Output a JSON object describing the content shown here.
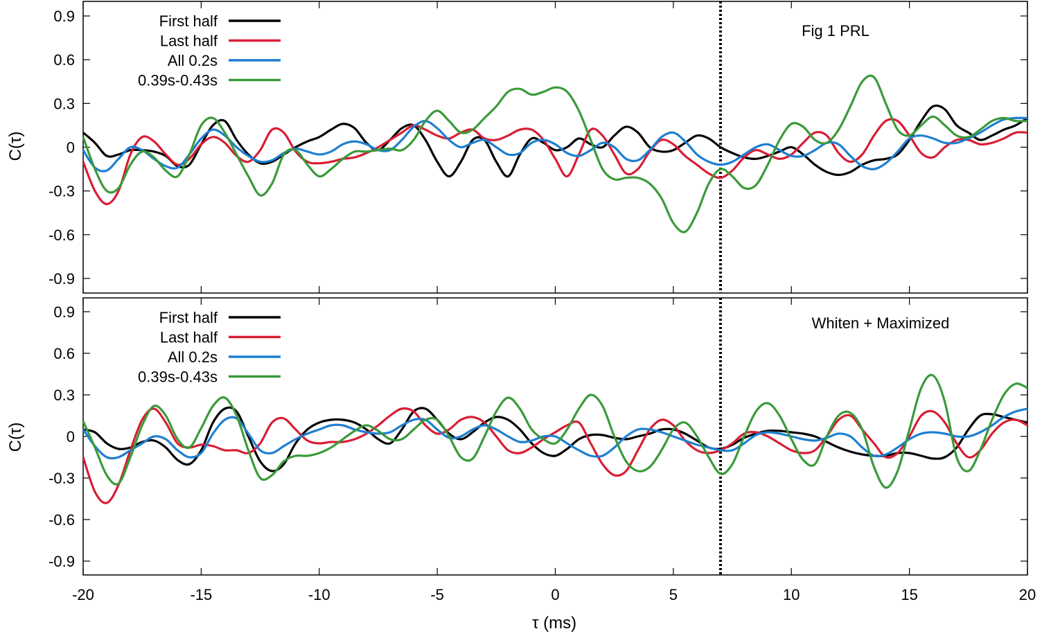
{
  "chart_data": [
    {
      "type": "line",
      "annotation": "Fig 1 PRL",
      "xlabel": "",
      "ylabel": "C(τ)",
      "xlim": [
        -20,
        20
      ],
      "ylim": [
        -1.0,
        1.0
      ],
      "xticks": [
        -20,
        -15,
        -10,
        -5,
        0,
        5,
        10,
        15,
        20
      ],
      "xtick_labels": [],
      "yticks": [
        -0.9,
        -0.6,
        -0.3,
        0,
        0.3,
        0.6,
        0.9
      ],
      "ytick_labels": [
        "-0.9",
        "-0.6",
        "-0.3",
        "0",
        "0.3",
        "0.6",
        "0.9"
      ],
      "vline_x": 7,
      "legend_position": "top-left",
      "x": [
        -20,
        -19.5,
        -19,
        -18.5,
        -18,
        -17.5,
        -17,
        -16.5,
        -16,
        -15.5,
        -15,
        -14.5,
        -14,
        -13.5,
        -13,
        -12.5,
        -12,
        -11.5,
        -11,
        -10.5,
        -10,
        -9.5,
        -9,
        -8.5,
        -8,
        -7.5,
        -7,
        -6.5,
        -6,
        -5.5,
        -5,
        -4.5,
        -4,
        -3.5,
        -3,
        -2.5,
        -2,
        -1.5,
        -1,
        -0.5,
        0,
        0.5,
        1,
        1.5,
        2,
        2.5,
        3,
        3.5,
        4,
        4.5,
        5,
        5.5,
        6,
        6.5,
        7,
        7.5,
        8,
        8.5,
        9,
        9.5,
        10,
        10.5,
        11,
        11.5,
        12,
        12.5,
        13,
        13.5,
        14,
        14.5,
        15,
        15.5,
        16,
        16.5,
        17,
        17.5,
        18,
        18.5,
        19,
        19.5,
        20
      ],
      "series": [
        {
          "name": "First half",
          "color": "#000000",
          "values": [
            0.1,
            0.03,
            -0.06,
            -0.05,
            -0.02,
            -0.02,
            -0.03,
            -0.06,
            -0.13,
            -0.12,
            0.02,
            0.15,
            0.18,
            0.05,
            -0.05,
            -0.11,
            -0.1,
            -0.05,
            0.0,
            0.04,
            0.07,
            0.12,
            0.16,
            0.13,
            0.03,
            -0.02,
            0.05,
            0.13,
            0.15,
            0.05,
            -0.1,
            -0.2,
            -0.1,
            0.05,
            0.05,
            -0.1,
            -0.2,
            -0.05,
            0.06,
            0.03,
            -0.02,
            0.0,
            0.06,
            0.02,
            0.0,
            0.08,
            0.14,
            0.1,
            0.0,
            -0.03,
            -0.02,
            0.03,
            0.08,
            0.06,
            0.0,
            -0.04,
            -0.07,
            -0.08,
            -0.06,
            -0.03,
            0.0,
            -0.05,
            -0.12,
            -0.17,
            -0.19,
            -0.17,
            -0.12,
            -0.09,
            -0.08,
            -0.05,
            0.05,
            0.18,
            0.28,
            0.26,
            0.15,
            0.1,
            0.05,
            0.08,
            0.12,
            0.15,
            0.2
          ]
        },
        {
          "name": "Last half",
          "color": "#d81e35",
          "values": [
            -0.1,
            -0.3,
            -0.39,
            -0.3,
            -0.05,
            0.07,
            0.04,
            -0.05,
            -0.12,
            -0.08,
            0.02,
            0.07,
            0.03,
            -0.06,
            -0.1,
            -0.02,
            0.12,
            0.1,
            -0.03,
            -0.1,
            -0.11,
            -0.1,
            -0.08,
            -0.07,
            -0.04,
            0.0,
            0.05,
            0.1,
            0.15,
            0.12,
            0.08,
            0.06,
            0.1,
            0.12,
            0.06,
            0.05,
            0.08,
            0.12,
            0.12,
            0.05,
            -0.08,
            -0.2,
            -0.05,
            0.12,
            0.08,
            -0.05,
            -0.18,
            -0.15,
            -0.03,
            0.05,
            0.02,
            -0.06,
            -0.12,
            -0.18,
            -0.21,
            -0.16,
            -0.07,
            -0.02,
            -0.05,
            -0.08,
            -0.05,
            0.03,
            0.1,
            0.08,
            -0.04,
            -0.1,
            -0.05,
            0.08,
            0.18,
            0.18,
            0.08,
            -0.04,
            -0.07,
            0.0,
            0.05,
            0.05,
            0.02,
            0.03,
            0.06,
            0.1,
            0.1
          ]
        },
        {
          "name": "All 0.2s",
          "color": "#1e7fd1",
          "values": [
            -0.02,
            -0.14,
            -0.16,
            -0.08,
            0.0,
            -0.02,
            -0.08,
            -0.13,
            -0.14,
            -0.05,
            0.06,
            0.12,
            0.08,
            0.0,
            -0.06,
            -0.1,
            -0.09,
            -0.04,
            -0.01,
            -0.03,
            -0.05,
            -0.03,
            0.02,
            0.04,
            0.02,
            -0.02,
            -0.02,
            0.05,
            0.14,
            0.18,
            0.13,
            0.05,
            0.0,
            0.03,
            0.05,
            0.0,
            -0.05,
            -0.04,
            0.03,
            0.05,
            0.02,
            -0.04,
            -0.06,
            -0.02,
            0.03,
            0.0,
            -0.08,
            -0.09,
            -0.02,
            0.07,
            0.1,
            0.04,
            -0.05,
            -0.1,
            -0.12,
            -0.1,
            -0.05,
            0.0,
            0.02,
            -0.02,
            -0.06,
            -0.06,
            -0.02,
            0.03,
            0.02,
            -0.06,
            -0.13,
            -0.15,
            -0.11,
            -0.03,
            0.06,
            0.08,
            0.06,
            0.03,
            0.03,
            0.06,
            0.1,
            0.15,
            0.19,
            0.2,
            0.2
          ]
        },
        {
          "name": "0.39s-0.43s",
          "color": "#3a9a3a",
          "values": [
            0.07,
            -0.15,
            -0.3,
            -0.28,
            -0.12,
            -0.03,
            -0.07,
            -0.16,
            -0.2,
            -0.05,
            0.15,
            0.2,
            0.1,
            -0.05,
            -0.2,
            -0.33,
            -0.25,
            -0.05,
            -0.02,
            -0.12,
            -0.2,
            -0.15,
            -0.08,
            -0.03,
            -0.03,
            -0.02,
            -0.01,
            -0.02,
            0.05,
            0.18,
            0.25,
            0.18,
            0.1,
            0.12,
            0.2,
            0.28,
            0.38,
            0.4,
            0.36,
            0.38,
            0.41,
            0.38,
            0.25,
            0.05,
            -0.15,
            -0.22,
            -0.21,
            -0.21,
            -0.25,
            -0.35,
            -0.52,
            -0.58,
            -0.45,
            -0.25,
            -0.15,
            -0.2,
            -0.28,
            -0.26,
            -0.12,
            0.05,
            0.16,
            0.14,
            0.05,
            0.03,
            0.12,
            0.28,
            0.45,
            0.48,
            0.3,
            0.12,
            0.08,
            0.15,
            0.21,
            0.15,
            0.08,
            0.07,
            0.12,
            0.18,
            0.2,
            0.18,
            0.18
          ]
        }
      ]
    },
    {
      "type": "line",
      "annotation": "Whiten + Maximized",
      "xlabel": "τ (ms)",
      "ylabel": "C(τ)",
      "xlim": [
        -20,
        20
      ],
      "ylim": [
        -1.0,
        1.0
      ],
      "xticks": [
        -20,
        -15,
        -10,
        -5,
        0,
        5,
        10,
        15,
        20
      ],
      "xtick_labels": [
        "-20",
        "-15",
        "-10",
        "-5",
        "0",
        "5",
        "10",
        "15",
        "20"
      ],
      "yticks": [
        -0.9,
        -0.6,
        -0.3,
        0,
        0.3,
        0.6,
        0.9
      ],
      "ytick_labels": [
        "-0.9",
        "-0.6",
        "-0.3",
        "0",
        "0.3",
        "0.6",
        "0.9"
      ],
      "vline_x": 7,
      "legend_position": "top-left",
      "x": [
        -20,
        -19.5,
        -19,
        -18.5,
        -18,
        -17.5,
        -17,
        -16.5,
        -16,
        -15.5,
        -15,
        -14.5,
        -14,
        -13.5,
        -13,
        -12.5,
        -12,
        -11.5,
        -11,
        -10.5,
        -10,
        -9.5,
        -9,
        -8.5,
        -8,
        -7.5,
        -7,
        -6.5,
        -6,
        -5.5,
        -5,
        -4.5,
        -4,
        -3.5,
        -3,
        -2.5,
        -2,
        -1.5,
        -1,
        -0.5,
        0,
        0.5,
        1,
        1.5,
        2,
        2.5,
        3,
        3.5,
        4,
        4.5,
        5,
        5.5,
        6,
        6.5,
        7,
        7.5,
        8,
        8.5,
        9,
        9.5,
        10,
        10.5,
        11,
        11.5,
        12,
        12.5,
        13,
        13.5,
        14,
        14.5,
        15,
        15.5,
        16,
        16.5,
        17,
        17.5,
        18,
        18.5,
        19,
        19.5,
        20
      ],
      "series": [
        {
          "name": "First half",
          "color": "#000000",
          "values": [
            0.05,
            0.03,
            -0.05,
            -0.09,
            -0.08,
            -0.04,
            -0.03,
            -0.08,
            -0.17,
            -0.2,
            -0.1,
            0.1,
            0.2,
            0.18,
            0.0,
            -0.18,
            -0.25,
            -0.2,
            -0.05,
            0.05,
            0.1,
            0.12,
            0.12,
            0.1,
            0.05,
            -0.02,
            -0.05,
            0.05,
            0.18,
            0.2,
            0.12,
            0.02,
            -0.02,
            0.03,
            0.1,
            0.14,
            0.12,
            0.05,
            -0.05,
            -0.12,
            -0.14,
            -0.09,
            -0.02,
            0.01,
            0.01,
            -0.01,
            -0.02,
            0.0,
            0.02,
            0.05,
            0.05,
            0.02,
            -0.03,
            -0.08,
            -0.09,
            -0.06,
            -0.01,
            0.02,
            0.04,
            0.04,
            0.03,
            0.02,
            0.0,
            -0.04,
            -0.08,
            -0.11,
            -0.13,
            -0.14,
            -0.14,
            -0.12,
            -0.12,
            -0.14,
            -0.16,
            -0.15,
            -0.08,
            0.05,
            0.15,
            0.16,
            0.14,
            0.12,
            0.1
          ]
        },
        {
          "name": "Last half",
          "color": "#d81e35",
          "values": [
            -0.15,
            -0.4,
            -0.48,
            -0.35,
            -0.1,
            0.12,
            0.2,
            0.1,
            -0.05,
            -0.08,
            -0.06,
            -0.07,
            -0.1,
            -0.1,
            -0.12,
            -0.05,
            0.1,
            0.13,
            0.05,
            -0.03,
            -0.05,
            -0.04,
            -0.04,
            -0.02,
            0.02,
            0.08,
            0.15,
            0.2,
            0.18,
            0.08,
            0.02,
            0.05,
            0.12,
            0.14,
            0.1,
            0.0,
            -0.1,
            -0.12,
            -0.08,
            -0.02,
            0.03,
            0.08,
            0.1,
            -0.05,
            -0.2,
            -0.28,
            -0.25,
            -0.1,
            0.05,
            0.12,
            0.08,
            -0.03,
            -0.1,
            -0.12,
            -0.1,
            -0.05,
            0.02,
            0.03,
            0.0,
            -0.05,
            -0.1,
            -0.12,
            -0.1,
            0.0,
            0.12,
            0.15,
            0.05,
            -0.05,
            -0.15,
            -0.12,
            0.0,
            0.15,
            0.18,
            0.1,
            -0.05,
            -0.15,
            -0.1,
            0.02,
            0.1,
            0.12,
            0.08
          ]
        },
        {
          "name": "All 0.2s",
          "color": "#1e7fd1",
          "values": [
            0.05,
            -0.07,
            -0.15,
            -0.15,
            -0.1,
            -0.05,
            0.0,
            -0.02,
            -0.1,
            -0.15,
            -0.12,
            0.02,
            0.12,
            0.13,
            0.02,
            -0.1,
            -0.12,
            -0.07,
            -0.02,
            0.02,
            0.05,
            0.08,
            0.08,
            0.05,
            0.03,
            0.02,
            0.03,
            0.08,
            0.12,
            0.12,
            0.05,
            -0.01,
            0.0,
            0.05,
            0.08,
            0.05,
            0.0,
            -0.04,
            -0.03,
            0.0,
            0.0,
            -0.05,
            -0.1,
            -0.14,
            -0.14,
            -0.08,
            0.0,
            0.05,
            0.05,
            0.03,
            0.0,
            -0.03,
            -0.06,
            -0.08,
            -0.1,
            -0.1,
            -0.05,
            0.01,
            0.03,
            0.02,
            0.0,
            -0.02,
            -0.03,
            -0.01,
            0.02,
            0.0,
            -0.08,
            -0.14,
            -0.13,
            -0.08,
            -0.02,
            0.02,
            0.03,
            0.02,
            0.0,
            0.0,
            0.03,
            0.08,
            0.14,
            0.18,
            0.2
          ]
        },
        {
          "name": "0.39s-0.43s",
          "color": "#3a9a3a",
          "values": [
            0.11,
            -0.08,
            -0.28,
            -0.34,
            -0.15,
            0.08,
            0.22,
            0.15,
            -0.02,
            -0.08,
            0.06,
            0.22,
            0.28,
            0.15,
            -0.1,
            -0.3,
            -0.28,
            -0.18,
            -0.14,
            -0.14,
            -0.12,
            -0.08,
            -0.02,
            0.04,
            0.08,
            0.04,
            -0.02,
            -0.02,
            0.05,
            0.12,
            0.12,
            0.0,
            -0.15,
            -0.16,
            0.0,
            0.18,
            0.28,
            0.2,
            0.05,
            -0.02,
            -0.05,
            0.05,
            0.2,
            0.3,
            0.22,
            0.0,
            -0.18,
            -0.25,
            -0.22,
            -0.1,
            0.05,
            0.1,
            0.0,
            -0.15,
            -0.27,
            -0.2,
            0.0,
            0.18,
            0.24,
            0.15,
            -0.02,
            -0.17,
            -0.2,
            0.0,
            0.15,
            0.17,
            0.05,
            -0.22,
            -0.37,
            -0.25,
            0.05,
            0.35,
            0.44,
            0.25,
            -0.15,
            -0.25,
            -0.1,
            0.12,
            0.3,
            0.38,
            0.35
          ]
        }
      ]
    }
  ]
}
